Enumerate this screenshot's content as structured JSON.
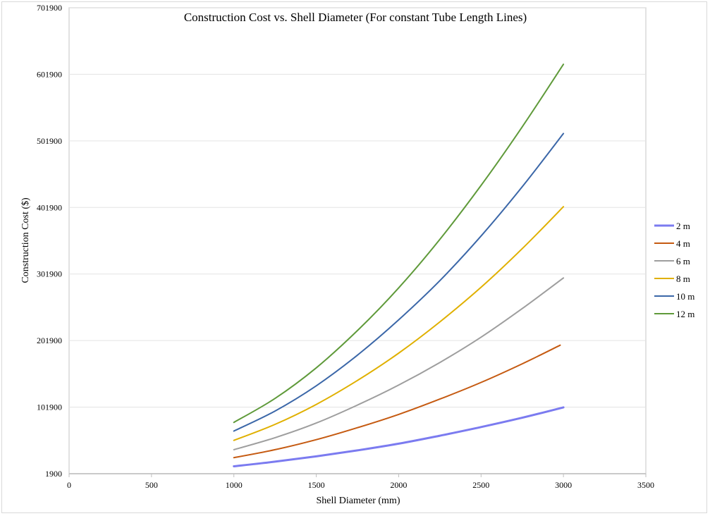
{
  "chart_data": {
    "type": "line",
    "title": "Construction Cost vs. Shell Diameter (For constant Tube Length Lines)",
    "xlabel": "Shell Diameter (mm)",
    "ylabel": "Construction Cost ($)",
    "xlim": [
      0,
      3500
    ],
    "ylim": [
      1900,
      701900
    ],
    "x_ticks": [
      0,
      500,
      1000,
      1500,
      2000,
      2500,
      3000,
      3500
    ],
    "y_ticks": [
      1900,
      101900,
      201900,
      301900,
      401900,
      501900,
      601900,
      701900
    ],
    "grid": "horizontal",
    "legend_position": "right",
    "series": [
      {
        "name": "2 m",
        "color": "#7b7bf0",
        "x": [
          1000,
          1250,
          1500,
          1750,
          2000,
          2250,
          2500,
          2750,
          3000
        ],
        "y": [
          13000,
          20000,
          28000,
          37000,
          47000,
          59000,
          72000,
          86000,
          101500
        ]
      },
      {
        "name": "4 m",
        "color": "#c55a11",
        "x": [
          1000,
          1250,
          1500,
          1750,
          2000,
          2250,
          2500,
          2750,
          2980
        ],
        "y": [
          26000,
          38000,
          53000,
          71000,
          91000,
          114000,
          139000,
          167000,
          195000
        ]
      },
      {
        "name": "6 m",
        "color": "#9e9e9e",
        "x": [
          1000,
          1250,
          1500,
          1750,
          2000,
          2250,
          2500,
          2750,
          3000
        ],
        "y": [
          38000,
          56000,
          78000,
          105000,
          135000,
          169000,
          207000,
          250000,
          296000
        ]
      },
      {
        "name": "8 m",
        "color": "#e0b000",
        "x": [
          1000,
          1250,
          1500,
          1750,
          2000,
          2250,
          2500,
          2750,
          3000
        ],
        "y": [
          52000,
          76000,
          106000,
          142000,
          183000,
          230000,
          282000,
          340000,
          403000
        ]
      },
      {
        "name": "10 m",
        "color": "#3b67a8",
        "x": [
          1000,
          1250,
          1500,
          1750,
          2000,
          2250,
          2500,
          2750,
          3000
        ],
        "y": [
          66000,
          96000,
          134000,
          180000,
          233000,
          292000,
          359000,
          433000,
          513000
        ]
      },
      {
        "name": "12 m",
        "color": "#5f9a3a",
        "x": [
          1000,
          1250,
          1500,
          1750,
          2000,
          2250,
          2500,
          2750,
          3000
        ],
        "y": [
          79000,
          115000,
          161000,
          217000,
          281000,
          354000,
          435000,
          523000,
          617000
        ]
      }
    ]
  }
}
